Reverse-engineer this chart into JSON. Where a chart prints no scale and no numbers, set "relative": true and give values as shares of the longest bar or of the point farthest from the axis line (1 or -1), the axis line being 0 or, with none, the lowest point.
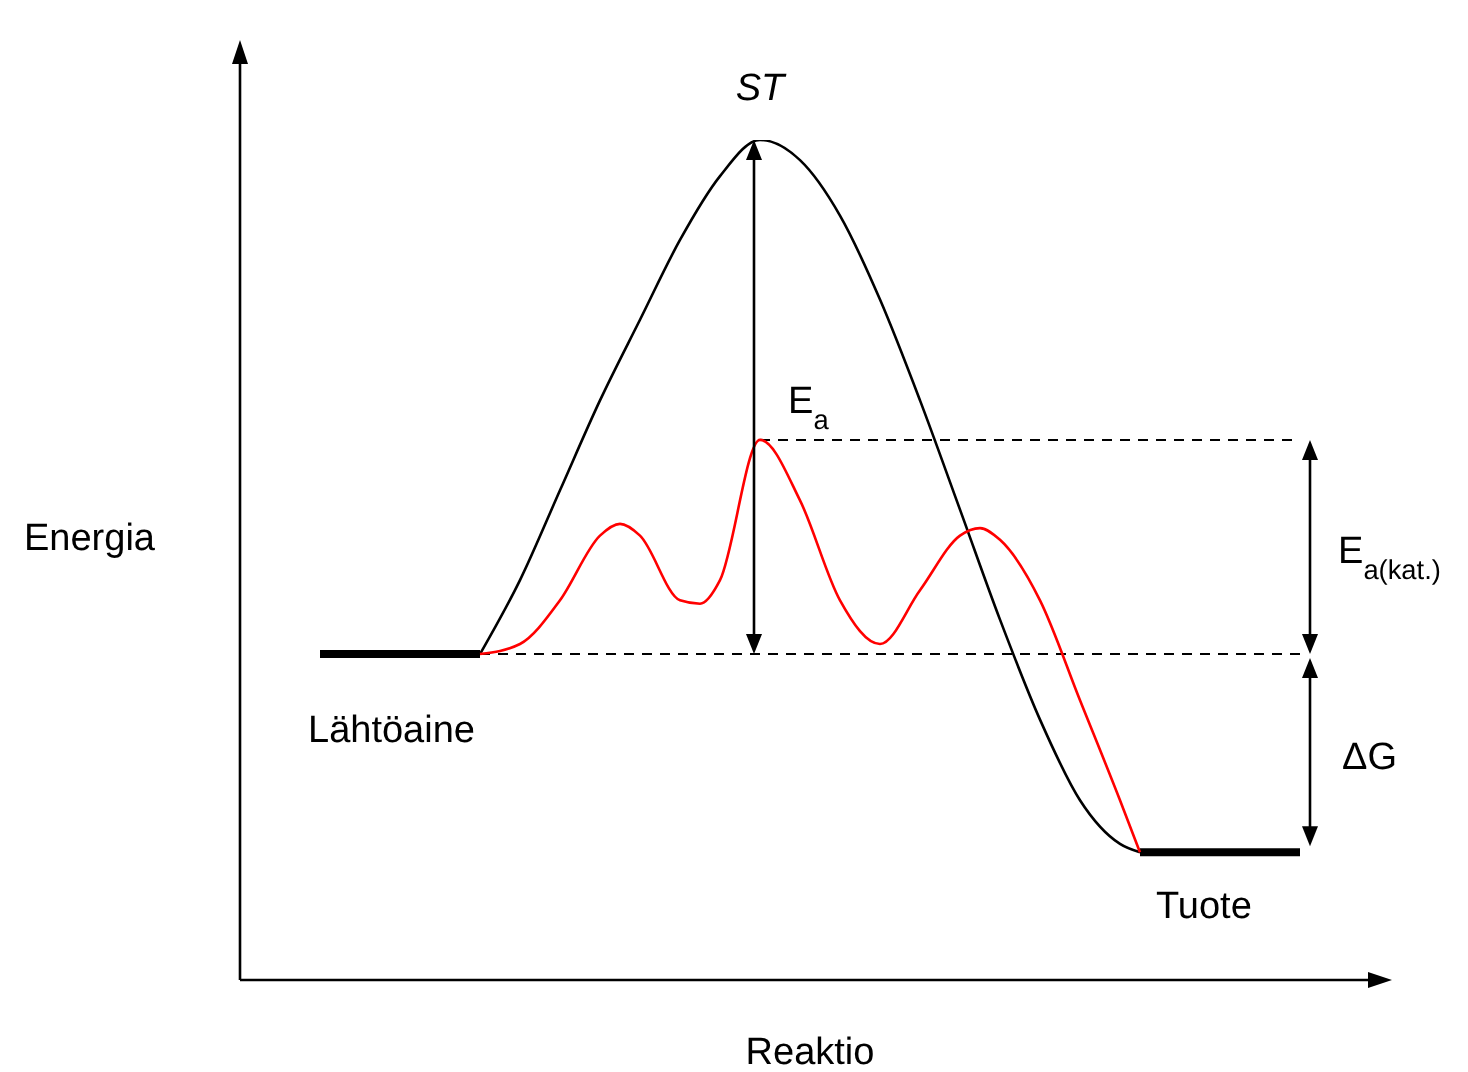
{
  "chart_data": {
    "type": "line",
    "relative": true,
    "xlabel": "Reaktio",
    "ylabel": "Energia",
    "categories": [
      null,
      null,
      null,
      null,
      null,
      null,
      null,
      null,
      null,
      null,
      null,
      null,
      null,
      null,
      null,
      null,
      null,
      null,
      null,
      null,
      null,
      null,
      null,
      null,
      null,
      null,
      null,
      null,
      null,
      null,
      null,
      null,
      null,
      null,
      null,
      null,
      null,
      null,
      null,
      null,
      null,
      null,
      null,
      null,
      null,
      null,
      null,
      null,
      null,
      null,
      null,
      null,
      null,
      null,
      null,
      null,
      null,
      null
    ],
    "series": [
      {
        "name": "Lähtöaine",
        "color": "#000000",
        "values": [
          null,
          null,
          null,
          null,
          0.388,
          0.388,
          0.388,
          0.388,
          0.388,
          0.388,
          0.388,
          0.388,
          0.388,
          null,
          null,
          null,
          null,
          null,
          null,
          null,
          null,
          null,
          null,
          null,
          null,
          null,
          null,
          null,
          null,
          null,
          null,
          null,
          null,
          null,
          null,
          null,
          null,
          null,
          null,
          null,
          null,
          null,
          null,
          null,
          null,
          null,
          null,
          null,
          null,
          null,
          null,
          null,
          null,
          null,
          null,
          null,
          null,
          null
        ]
      },
      {
        "name": "Tuote",
        "color": "#000000",
        "values": [
          null,
          null,
          null,
          null,
          null,
          null,
          null,
          null,
          null,
          null,
          null,
          null,
          null,
          null,
          null,
          null,
          null,
          null,
          null,
          null,
          null,
          null,
          null,
          null,
          null,
          null,
          null,
          null,
          null,
          null,
          null,
          null,
          null,
          null,
          null,
          null,
          null,
          null,
          null,
          null,
          null,
          null,
          null,
          null,
          null,
          0.152,
          0.152,
          0.152,
          0.152,
          0.152,
          0.152,
          0.152,
          0.152,
          0.152,
          null,
          null,
          null,
          null
        ]
      },
      {
        "color": "#000000",
        "values": [
          null,
          null,
          null,
          null,
          null,
          null,
          null,
          null,
          null,
          null,
          null,
          null,
          0.388,
          null,
          0.476,
          null,
          0.583,
          null,
          0.69,
          null,
          0.786,
          null,
          0.881,
          null,
          0.957,
          null,
          1,
          null,
          0.976,
          null,
          0.91,
          null,
          0.81,
          null,
          0.69,
          null,
          0.56,
          null,
          0.429,
          null,
          0.31,
          null,
          0.214,
          null,
          0.162,
          0.152,
          null,
          null,
          null,
          null,
          null,
          null,
          null,
          null,
          null,
          null,
          null,
          null
        ]
      },
      {
        "color": "#ff0000",
        "values": [
          null,
          null,
          null,
          null,
          null,
          null,
          null,
          null,
          null,
          null,
          null,
          null,
          0.388,
          null,
          0.4,
          null,
          0.452,
          null,
          0.529,
          0.543,
          0.529,
          null,
          0.452,
          0.448,
          0.476,
          null,
          0.643,
          null,
          0.571,
          null,
          0.452,
          null,
          0.4,
          null,
          0.464,
          null,
          0.529,
          0.538,
          0.524,
          null,
          0.452,
          null,
          0.333,
          null,
          0.214,
          0.152,
          null,
          null,
          null,
          null,
          null,
          null,
          null,
          null,
          null,
          null,
          null,
          null
        ]
      }
    ],
    "ref_lines": [
      {
        "axis": "y",
        "value": 0.388,
        "line_style": "dashed"
      },
      {
        "axis": "y",
        "value": 0.643,
        "line_style": "dashed"
      }
    ],
    "annotations": [
      "ST",
      "E$_{a}$",
      "E$_{a(kat.)}$",
      "ΔG"
    ],
    "marker": "none",
    "line_style": "solid"
  }
}
